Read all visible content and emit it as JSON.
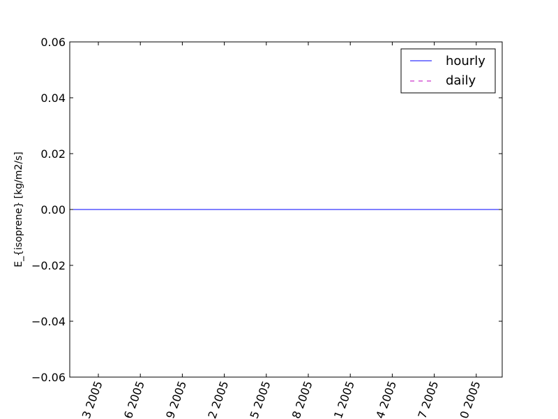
{
  "chart_data": {
    "type": "line",
    "title": "",
    "xlabel": "",
    "ylabel": "E_{isoprene} [kg/m2/s]",
    "ylim": [
      -0.06,
      0.06
    ],
    "yticks": [
      "0.06",
      "0.04",
      "0.02",
      "0.00",
      "−0.02",
      "−0.04",
      "−0.06"
    ],
    "ytick_values": [
      0.06,
      0.04,
      0.02,
      0.0,
      -0.02,
      -0.04,
      -0.06
    ],
    "xticks": [
      "3 2005",
      "6 2005",
      "9 2005",
      "2 2005",
      "5 2005",
      "8 2005",
      "1 2005",
      "4 2005",
      "7 2005",
      "0 2005"
    ],
    "grid": false,
    "legend_position": "top-right",
    "series": [
      {
        "name": "hourly",
        "color": "#0000ff",
        "style": "solid",
        "values": [
          0,
          0
        ]
      },
      {
        "name": "daily",
        "color": "#bf00bf",
        "style": "dashed",
        "values": [
          0,
          0
        ]
      }
    ]
  }
}
